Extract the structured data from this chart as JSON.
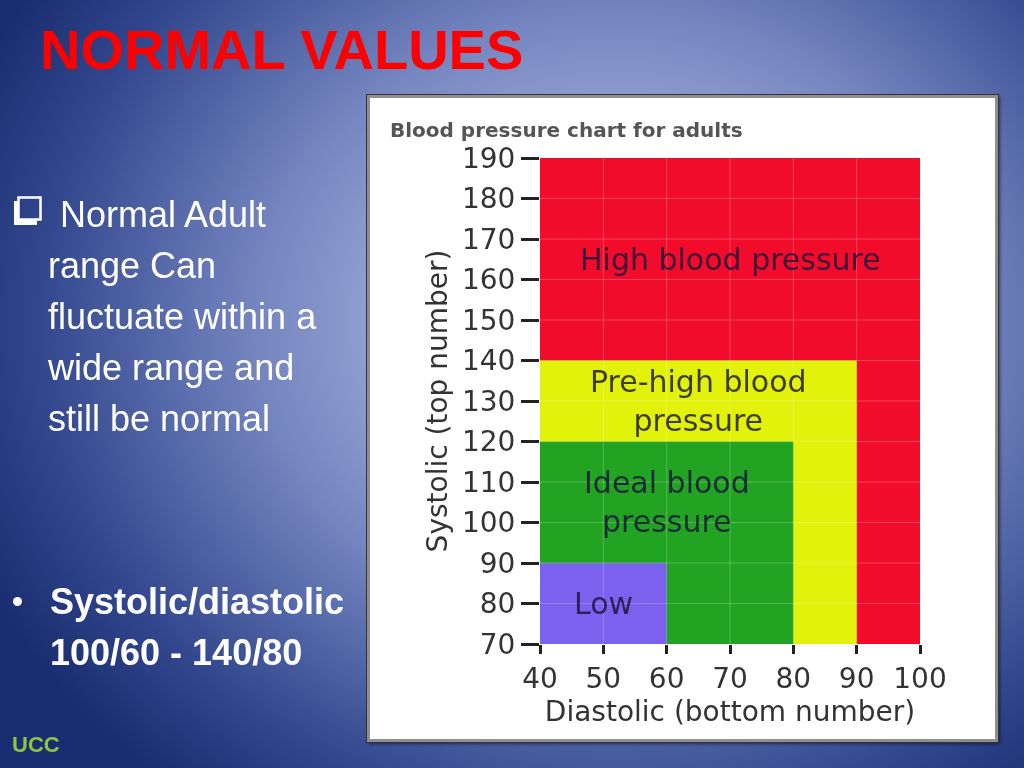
{
  "chart_data": {
    "type": "area",
    "title": "NORMAL VALUES",
    "subtitle": "Blood pressure chart for adults",
    "xlabel": "Diastolic (bottom number)",
    "ylabel": "Systolic (top number)",
    "series": [
      {
        "name": "High blood pressure",
        "color": "#f20c2c",
        "x": [
          40,
          100
        ],
        "values": [
          190,
          190
        ]
      },
      {
        "name": "Pre-high blood pressure",
        "color": "#e2f20a",
        "x": [
          40,
          90
        ],
        "values": [
          140,
          140
        ]
      },
      {
        "name": "Ideal blood pressure",
        "color": "#22a322",
        "x": [
          40,
          80
        ],
        "values": [
          120,
          120
        ]
      },
      {
        "name": "Low",
        "color": "#7a62ee",
        "x": [
          40,
          60
        ],
        "values": [
          90,
          90
        ]
      }
    ],
    "xlim": [
      40,
      100
    ],
    "xticks": [
      40,
      50,
      60,
      70,
      80,
      90,
      100
    ],
    "ylim": [
      70,
      190
    ],
    "yticks": [
      70,
      80,
      90,
      100,
      110,
      120,
      130,
      140,
      150,
      160,
      170,
      180,
      190
    ],
    "grid": true,
    "annotations": [
      "Normal Adult range Can fluctuate within a wide range and still be normal",
      "Systolic/diastolic 100/60 - 140/80",
      "UCC"
    ]
  }
}
